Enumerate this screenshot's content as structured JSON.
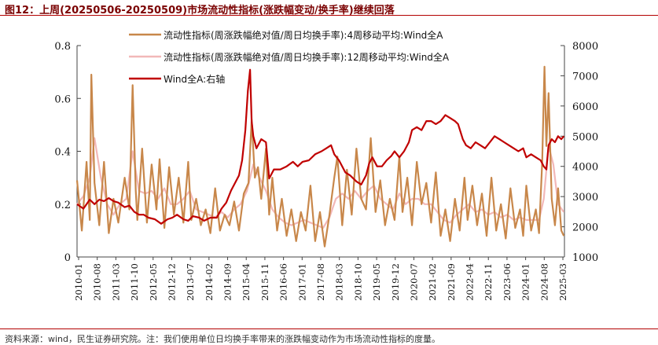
{
  "header": {
    "title": "图12：上周(20250506-20250509)市场流动性指标(涨跌幅变动/换手率)继续回落"
  },
  "footer": {
    "source": "资料来源：wind，民生证券研究院。注：我们使用单位日均换手率带来的涨跌幅变动作为市场流动性指标的度量。"
  },
  "colors": {
    "series_4w": "#c8874a",
    "series_12w": "#f2b8b8",
    "series_windA": "#c00000",
    "title_rule": "#b30000"
  },
  "chart_data": {
    "type": "line",
    "legend_placement": "top-center",
    "grid": false,
    "x_range": [
      2010.0,
      2025.35
    ],
    "x_tick_labels": [
      "2010-01",
      "2010-08",
      "2011-03",
      "2011-10",
      "2012-05",
      "2012-12",
      "2013-07",
      "2014-02",
      "2014-09",
      "2015-04",
      "2015-11",
      "2016-06",
      "2017-01",
      "2017-08",
      "2018-03",
      "2018-10",
      "2019-05",
      "2019-12",
      "2020-07",
      "2021-02",
      "2021-09",
      "2022-04",
      "2022-11",
      "2023-06",
      "2024-01",
      "2024-08",
      "2025-03"
    ],
    "y_left": {
      "range": [
        0,
        0.8
      ],
      "ticks": [
        0,
        0.2,
        0.4,
        0.6,
        0.8
      ],
      "tick_labels": [
        "0",
        "0.2",
        "0.4",
        "0.6",
        "0.8"
      ]
    },
    "y_right": {
      "range": [
        1000,
        8000
      ],
      "ticks": [
        1000,
        2000,
        3000,
        4000,
        5000,
        6000,
        7000,
        8000
      ],
      "tick_labels": [
        "1000",
        "2000",
        "3000",
        "4000",
        "5000",
        "6000",
        "7000",
        "8000"
      ]
    },
    "series": [
      {
        "name": "流动性指标(周涨跌幅绝对值/周日均换手率):4周移动平均:Wind全A",
        "axis": "left",
        "x": [
          2010.0,
          2010.15,
          2010.3,
          2010.4,
          2010.45,
          2010.55,
          2010.7,
          2010.85,
          2011.0,
          2011.15,
          2011.3,
          2011.5,
          2011.65,
          2011.75,
          2011.85,
          2011.9,
          2012.05,
          2012.2,
          2012.35,
          2012.5,
          2012.6,
          2012.75,
          2012.9,
          2013.05,
          2013.2,
          2013.35,
          2013.5,
          2013.6,
          2013.75,
          2013.9,
          2014.05,
          2014.2,
          2014.35,
          2014.5,
          2014.65,
          2014.8,
          2014.95,
          2015.1,
          2015.25,
          2015.4,
          2015.5,
          2015.6,
          2015.7,
          2015.8,
          2015.95,
          2016.05,
          2016.15,
          2016.3,
          2016.45,
          2016.6,
          2016.75,
          2016.9,
          2017.05,
          2017.2,
          2017.35,
          2017.5,
          2017.65,
          2017.8,
          2017.95,
          2018.1,
          2018.2,
          2018.35,
          2018.5,
          2018.65,
          2018.8,
          2018.95,
          2019.1,
          2019.25,
          2019.4,
          2019.55,
          2019.7,
          2019.85,
          2020.0,
          2020.15,
          2020.25,
          2020.4,
          2020.55,
          2020.7,
          2020.85,
          2021.0,
          2021.15,
          2021.3,
          2021.45,
          2021.6,
          2021.75,
          2021.9,
          2022.05,
          2022.2,
          2022.3,
          2022.45,
          2022.6,
          2022.75,
          2022.9,
          2023.05,
          2023.2,
          2023.35,
          2023.5,
          2023.65,
          2023.8,
          2023.95,
          2024.05,
          2024.15,
          2024.3,
          2024.45,
          2024.55,
          2024.65,
          2024.72,
          2024.78,
          2024.85,
          2024.95,
          2025.05,
          2025.15,
          2025.25,
          2025.33
        ],
        "y": [
          0.29,
          0.1,
          0.36,
          0.14,
          0.69,
          0.28,
          0.12,
          0.36,
          0.09,
          0.22,
          0.13,
          0.3,
          0.18,
          0.65,
          0.25,
          0.14,
          0.41,
          0.13,
          0.35,
          0.18,
          0.37,
          0.11,
          0.34,
          0.16,
          0.3,
          0.13,
          0.36,
          0.14,
          0.22,
          0.12,
          0.18,
          0.09,
          0.26,
          0.1,
          0.16,
          0.12,
          0.21,
          0.1,
          0.24,
          0.28,
          0.52,
          0.3,
          0.34,
          0.22,
          0.41,
          0.16,
          0.3,
          0.1,
          0.22,
          0.08,
          0.18,
          0.06,
          0.17,
          0.1,
          0.27,
          0.06,
          0.17,
          0.04,
          0.16,
          0.3,
          0.38,
          0.12,
          0.33,
          0.16,
          0.41,
          0.22,
          0.18,
          0.45,
          0.17,
          0.29,
          0.12,
          0.22,
          0.14,
          0.38,
          0.17,
          0.3,
          0.12,
          0.36,
          0.2,
          0.28,
          0.13,
          0.32,
          0.08,
          0.18,
          0.06,
          0.22,
          0.1,
          0.3,
          0.14,
          0.27,
          0.12,
          0.24,
          0.08,
          0.3,
          0.1,
          0.2,
          0.07,
          0.26,
          0.11,
          0.18,
          0.08,
          0.27,
          0.1,
          0.18,
          0.09,
          0.36,
          0.72,
          0.42,
          0.62,
          0.22,
          0.12,
          0.26,
          0.1,
          0.08
        ]
      },
      {
        "name": "流动性指标(周涨跌幅绝对值/周日均换手率):12周移动平均:Wind全A",
        "axis": "left",
        "x": [
          2010.0,
          2010.2,
          2010.4,
          2010.55,
          2010.75,
          2010.95,
          2011.15,
          2011.35,
          2011.55,
          2011.75,
          2011.95,
          2012.15,
          2012.35,
          2012.55,
          2012.75,
          2012.95,
          2013.15,
          2013.35,
          2013.55,
          2013.75,
          2013.95,
          2014.15,
          2014.35,
          2014.55,
          2014.75,
          2014.95,
          2015.15,
          2015.35,
          2015.55,
          2015.75,
          2015.95,
          2016.15,
          2016.35,
          2016.55,
          2016.75,
          2016.95,
          2017.15,
          2017.35,
          2017.55,
          2017.75,
          2017.95,
          2018.15,
          2018.35,
          2018.55,
          2018.75,
          2018.95,
          2019.15,
          2019.35,
          2019.55,
          2019.75,
          2019.95,
          2020.15,
          2020.35,
          2020.55,
          2020.75,
          2020.95,
          2021.15,
          2021.35,
          2021.55,
          2021.75,
          2021.95,
          2022.15,
          2022.35,
          2022.55,
          2022.75,
          2022.95,
          2023.15,
          2023.35,
          2023.55,
          2023.75,
          2023.95,
          2024.15,
          2024.35,
          2024.55,
          2024.7,
          2024.85,
          2025.0,
          2025.15,
          2025.33
        ],
        "y": [
          0.2,
          0.23,
          0.3,
          0.45,
          0.3,
          0.2,
          0.16,
          0.2,
          0.22,
          0.4,
          0.25,
          0.24,
          0.25,
          0.22,
          0.26,
          0.2,
          0.2,
          0.22,
          0.25,
          0.18,
          0.17,
          0.16,
          0.15,
          0.17,
          0.15,
          0.18,
          0.2,
          0.25,
          0.35,
          0.3,
          0.25,
          0.18,
          0.15,
          0.13,
          0.12,
          0.13,
          0.14,
          0.13,
          0.12,
          0.11,
          0.15,
          0.22,
          0.24,
          0.22,
          0.25,
          0.22,
          0.25,
          0.27,
          0.22,
          0.2,
          0.18,
          0.24,
          0.2,
          0.22,
          0.22,
          0.2,
          0.2,
          0.17,
          0.14,
          0.13,
          0.16,
          0.18,
          0.2,
          0.17,
          0.18,
          0.16,
          0.17,
          0.15,
          0.16,
          0.14,
          0.15,
          0.14,
          0.14,
          0.14,
          0.22,
          0.42,
          0.35,
          0.2,
          0.17
        ]
      },
      {
        "name": "Wind全A:右轴",
        "axis": "right",
        "x": [
          2010.0,
          2010.2,
          2010.4,
          2010.55,
          2010.7,
          2010.85,
          2011.0,
          2011.15,
          2011.3,
          2011.5,
          2011.65,
          2011.8,
          2011.95,
          2012.1,
          2012.25,
          2012.45,
          2012.65,
          2012.85,
          2013.0,
          2013.15,
          2013.35,
          2013.5,
          2013.65,
          2013.85,
          2014.0,
          2014.2,
          2014.4,
          2014.55,
          2014.7,
          2014.85,
          2015.0,
          2015.1,
          2015.2,
          2015.3,
          2015.38,
          2015.45,
          2015.5,
          2015.55,
          2015.65,
          2015.8,
          2015.95,
          2016.05,
          2016.2,
          2016.4,
          2016.6,
          2016.8,
          2016.95,
          2017.1,
          2017.3,
          2017.5,
          2017.7,
          2017.85,
          2018.0,
          2018.1,
          2018.25,
          2018.45,
          2018.6,
          2018.8,
          2018.95,
          2019.1,
          2019.2,
          2019.3,
          2019.45,
          2019.6,
          2019.75,
          2019.9,
          2020.0,
          2020.15,
          2020.3,
          2020.45,
          2020.55,
          2020.7,
          2020.85,
          2021.0,
          2021.15,
          2021.3,
          2021.45,
          2021.6,
          2021.75,
          2021.9,
          2022.0,
          2022.15,
          2022.25,
          2022.4,
          2022.55,
          2022.7,
          2022.85,
          2023.0,
          2023.15,
          2023.3,
          2023.45,
          2023.6,
          2023.75,
          2023.9,
          2024.05,
          2024.15,
          2024.3,
          2024.45,
          2024.6,
          2024.7,
          2024.78,
          2024.85,
          2024.95,
          2025.05,
          2025.15,
          2025.25,
          2025.33
        ],
        "y": [
          2750,
          2600,
          2900,
          2750,
          2900,
          2850,
          2950,
          2850,
          2800,
          2650,
          2700,
          2500,
          2400,
          2400,
          2300,
          2250,
          2100,
          2250,
          2300,
          2400,
          2250,
          2200,
          2350,
          2300,
          2200,
          2300,
          2300,
          2600,
          2800,
          3200,
          3500,
          3700,
          4200,
          5200,
          6500,
          7200,
          5500,
          5000,
          4600,
          4900,
          4800,
          3600,
          3900,
          3900,
          4000,
          4150,
          4000,
          4150,
          4200,
          4400,
          4500,
          4600,
          4700,
          4400,
          4200,
          3800,
          3700,
          3500,
          3400,
          3700,
          4100,
          4300,
          4000,
          4000,
          4200,
          4350,
          4500,
          4300,
          4500,
          4800,
          5200,
          5300,
          5200,
          5500,
          5500,
          5400,
          5500,
          5700,
          5600,
          5500,
          5400,
          4900,
          4700,
          4600,
          4800,
          4700,
          4600,
          4800,
          5000,
          4900,
          4800,
          4700,
          4600,
          4500,
          4600,
          4300,
          4400,
          4300,
          4200,
          4000,
          3900,
          4700,
          4900,
          4800,
          5000,
          4900,
          5000
        ]
      }
    ]
  }
}
